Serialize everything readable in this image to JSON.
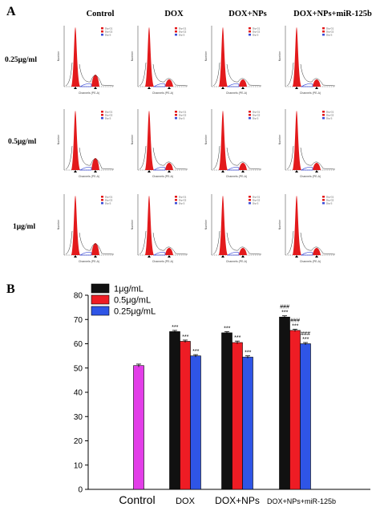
{
  "panel_a": {
    "label": "A",
    "columns": [
      "Control",
      "DOX",
      "DOX+NPs",
      "DOX+NPs+miR-125b"
    ],
    "rows": [
      "0.25μg/ml",
      "0.5μg/ml",
      "1μg/ml"
    ],
    "mini_xlabel": "Channels (PE-A)",
    "mini_ylabel": "Number",
    "mini_legend": [
      "Dip G1",
      "Dip G2",
      "Dip S"
    ],
    "colors": {
      "peak": "#e31a1c",
      "s_phase": "#3b4bd6",
      "fit": "#333333"
    }
  },
  "panel_b": {
    "label": "B",
    "colors": [
      "#111111",
      "#ee1c24",
      "#2f55e6",
      "#e23ee8"
    ]
  },
  "chart_data": {
    "type": "bar",
    "categories": [
      "Control",
      "DOX",
      "DOX+NPs",
      "DOX+NPs+miR-125b"
    ],
    "series": [
      {
        "name": "1μg/mL",
        "values": [
          null,
          65,
          64.5,
          71
        ]
      },
      {
        "name": "0.5μg/mL",
        "values": [
          null,
          61,
          60.5,
          65.5
        ]
      },
      {
        "name": "0.25μg/mL",
        "values": [
          null,
          55,
          54.5,
          60
        ]
      }
    ],
    "control_value": 51,
    "control_error": 0.6,
    "errors": [
      [
        null,
        0.5,
        0.5,
        0.5
      ],
      [
        null,
        0.5,
        0.6,
        0.5
      ],
      [
        null,
        0.5,
        0.5,
        0.5
      ]
    ],
    "annotations": [
      [
        "",
        "***",
        "***",
        "###\n***"
      ],
      [
        "",
        "***",
        "***",
        "###\n***"
      ],
      [
        "",
        "***",
        "***",
        "###\n***"
      ]
    ],
    "ylim": [
      0,
      80
    ],
    "yticks": [
      0,
      10,
      20,
      30,
      40,
      50,
      60,
      70,
      80
    ],
    "legend_position": "top-left"
  }
}
